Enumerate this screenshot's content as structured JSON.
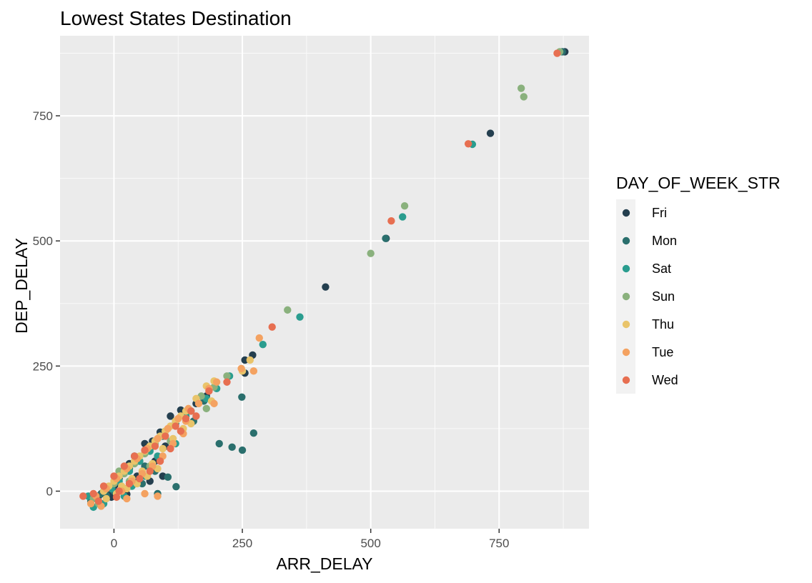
{
  "chart_data": {
    "type": "scatter",
    "title": "Lowest States Destination",
    "xlabel": "ARR_DELAY",
    "ylabel": "DEP_DELAY",
    "xlim": [
      -105,
      925
    ],
    "ylim": [
      -75,
      910
    ],
    "x_ticks": [
      0,
      250,
      500,
      750
    ],
    "y_ticks": [
      0,
      250,
      500,
      750
    ],
    "grid": true,
    "legend_title": "DAY_OF_WEEK_STR",
    "legend_position": "right",
    "colors": {
      "Fri": "#243f4f",
      "Mon": "#2a6f6d",
      "Sat": "#2a9d8f",
      "Sun": "#8ab17d",
      "Thu": "#e9c46a",
      "Tue": "#f4a261",
      "Wed": "#e76f51"
    },
    "series": [
      {
        "name": "Fri",
        "points": [
          [
            878,
            878
          ],
          [
            733,
            715
          ],
          [
            412,
            408
          ],
          [
            530,
            505
          ],
          [
            255,
            262
          ],
          [
            270,
            272
          ],
          [
            255,
            236
          ],
          [
            130,
            162
          ],
          [
            110,
            150
          ],
          [
            90,
            118
          ],
          [
            75,
            100
          ],
          [
            60,
            95
          ],
          [
            40,
            70
          ],
          [
            30,
            55
          ],
          [
            20,
            40
          ],
          [
            10,
            25
          ],
          [
            0,
            10
          ],
          [
            -10,
            0
          ],
          [
            -20,
            -5
          ],
          [
            -30,
            -10
          ],
          [
            5,
            15
          ],
          [
            45,
            30
          ],
          [
            80,
            60
          ],
          [
            100,
            90
          ],
          [
            140,
            150
          ],
          [
            180,
            190
          ],
          [
            95,
            30
          ],
          [
            70,
            20
          ],
          [
            150,
            160
          ],
          [
            160,
            175
          ],
          [
            -5,
            -12
          ],
          [
            25,
            -6
          ]
        ]
      },
      {
        "name": "Mon",
        "points": [
          [
            873,
            878
          ],
          [
            529,
            505
          ],
          [
            249,
            188
          ],
          [
            272,
            116
          ],
          [
            205,
            95
          ],
          [
            230,
            88
          ],
          [
            250,
            82
          ],
          [
            121,
            9
          ],
          [
            105,
            28
          ],
          [
            80,
            40
          ],
          [
            60,
            50
          ],
          [
            40,
            20
          ],
          [
            20,
            5
          ],
          [
            0,
            0
          ],
          [
            -15,
            -8
          ],
          [
            -35,
            -12
          ],
          [
            -45,
            -20
          ],
          [
            10,
            30
          ],
          [
            30,
            45
          ],
          [
            50,
            60
          ],
          [
            70,
            85
          ],
          [
            95,
            110
          ],
          [
            120,
            135
          ],
          [
            155,
            140
          ],
          [
            175,
            180
          ],
          [
            -25,
            -5
          ],
          [
            85,
            -5
          ],
          [
            55,
            15
          ]
        ]
      },
      {
        "name": "Sat",
        "points": [
          [
            698,
            693
          ],
          [
            562,
            548
          ],
          [
            362,
            348
          ],
          [
            290,
            293
          ],
          [
            225,
            230
          ],
          [
            180,
            185
          ],
          [
            120,
            95
          ],
          [
            100,
            110
          ],
          [
            70,
            80
          ],
          [
            50,
            60
          ],
          [
            30,
            40
          ],
          [
            10,
            20
          ],
          [
            -5,
            5
          ],
          [
            -30,
            -20
          ],
          [
            -40,
            -32
          ],
          [
            -50,
            -10
          ],
          [
            20,
            -10
          ],
          [
            60,
            30
          ],
          [
            85,
            70
          ],
          [
            140,
            150
          ],
          [
            200,
            205
          ],
          [
            -20,
            -25
          ],
          [
            35,
            10
          ]
        ]
      },
      {
        "name": "Sun",
        "points": [
          [
            868,
            878
          ],
          [
            793,
            805
          ],
          [
            798,
            788
          ],
          [
            566,
            570
          ],
          [
            500,
            475
          ],
          [
            338,
            362
          ],
          [
            220,
            230
          ],
          [
            195,
            208
          ],
          [
            170,
            190
          ],
          [
            150,
            160
          ],
          [
            120,
            140
          ],
          [
            100,
            120
          ],
          [
            80,
            95
          ],
          [
            60,
            75
          ],
          [
            40,
            55
          ],
          [
            20,
            35
          ],
          [
            0,
            15
          ],
          [
            -20,
            0
          ],
          [
            -40,
            -15
          ],
          [
            30,
            20
          ],
          [
            70,
            50
          ],
          [
            110,
            100
          ],
          [
            180,
            165
          ],
          [
            10,
            40
          ],
          [
            -30,
            -25
          ]
        ]
      },
      {
        "name": "Thu",
        "points": [
          [
            265,
            262
          ],
          [
            250,
            240
          ],
          [
            195,
            220
          ],
          [
            180,
            210
          ],
          [
            160,
            185
          ],
          [
            140,
            160
          ],
          [
            130,
            150
          ],
          [
            120,
            140
          ],
          [
            110,
            130
          ],
          [
            100,
            120
          ],
          [
            90,
            110
          ],
          [
            80,
            100
          ],
          [
            70,
            90
          ],
          [
            60,
            80
          ],
          [
            50,
            70
          ],
          [
            40,
            60
          ],
          [
            30,
            50
          ],
          [
            20,
            40
          ],
          [
            10,
            30
          ],
          [
            0,
            20
          ],
          [
            -10,
            10
          ],
          [
            -20,
            0
          ],
          [
            15,
            10
          ],
          [
            35,
            25
          ],
          [
            55,
            40
          ],
          [
            75,
            55
          ],
          [
            95,
            85
          ],
          [
            115,
            105
          ],
          [
            135,
            125
          ],
          [
            150,
            135
          ],
          [
            25,
            5
          ],
          [
            45,
            15
          ],
          [
            65,
            30
          ],
          [
            85,
            45
          ],
          [
            5,
            -5
          ],
          [
            -15,
            -15
          ],
          [
            190,
            180
          ]
        ]
      },
      {
        "name": "Tue",
        "points": [
          [
            283,
            306
          ],
          [
            272,
            240
          ],
          [
            248,
            245
          ],
          [
            200,
            218
          ],
          [
            185,
            205
          ],
          [
            165,
            175
          ],
          [
            145,
            165
          ],
          [
            125,
            145
          ],
          [
            105,
            125
          ],
          [
            85,
            105
          ],
          [
            65,
            85
          ],
          [
            45,
            65
          ],
          [
            25,
            45
          ],
          [
            5,
            25
          ],
          [
            -15,
            5
          ],
          [
            -35,
            -10
          ],
          [
            -45,
            -25
          ],
          [
            15,
            0
          ],
          [
            35,
            20
          ],
          [
            55,
            35
          ],
          [
            75,
            50
          ],
          [
            95,
            70
          ],
          [
            115,
            95
          ],
          [
            135,
            115
          ],
          [
            195,
            175
          ],
          [
            60,
            -5
          ],
          [
            85,
            -10
          ],
          [
            25,
            -15
          ],
          [
            -25,
            -30
          ],
          [
            140,
            140
          ]
        ]
      },
      {
        "name": "Wed",
        "points": [
          [
            863,
            875
          ],
          [
            690,
            694
          ],
          [
            540,
            540
          ],
          [
            308,
            328
          ],
          [
            220,
            218
          ],
          [
            185,
            200
          ],
          [
            160,
            150
          ],
          [
            140,
            145
          ],
          [
            120,
            130
          ],
          [
            100,
            110
          ],
          [
            80,
            90
          ],
          [
            60,
            82
          ],
          [
            40,
            70
          ],
          [
            20,
            50
          ],
          [
            0,
            30
          ],
          [
            -20,
            10
          ],
          [
            -40,
            -5
          ],
          [
            -60,
            -10
          ],
          [
            10,
            0
          ],
          [
            30,
            15
          ],
          [
            50,
            25
          ],
          [
            70,
            40
          ],
          [
            90,
            60
          ],
          [
            110,
            85
          ],
          [
            130,
            120
          ],
          [
            150,
            160
          ],
          [
            -30,
            -20
          ],
          [
            5,
            -12
          ]
        ]
      }
    ]
  }
}
